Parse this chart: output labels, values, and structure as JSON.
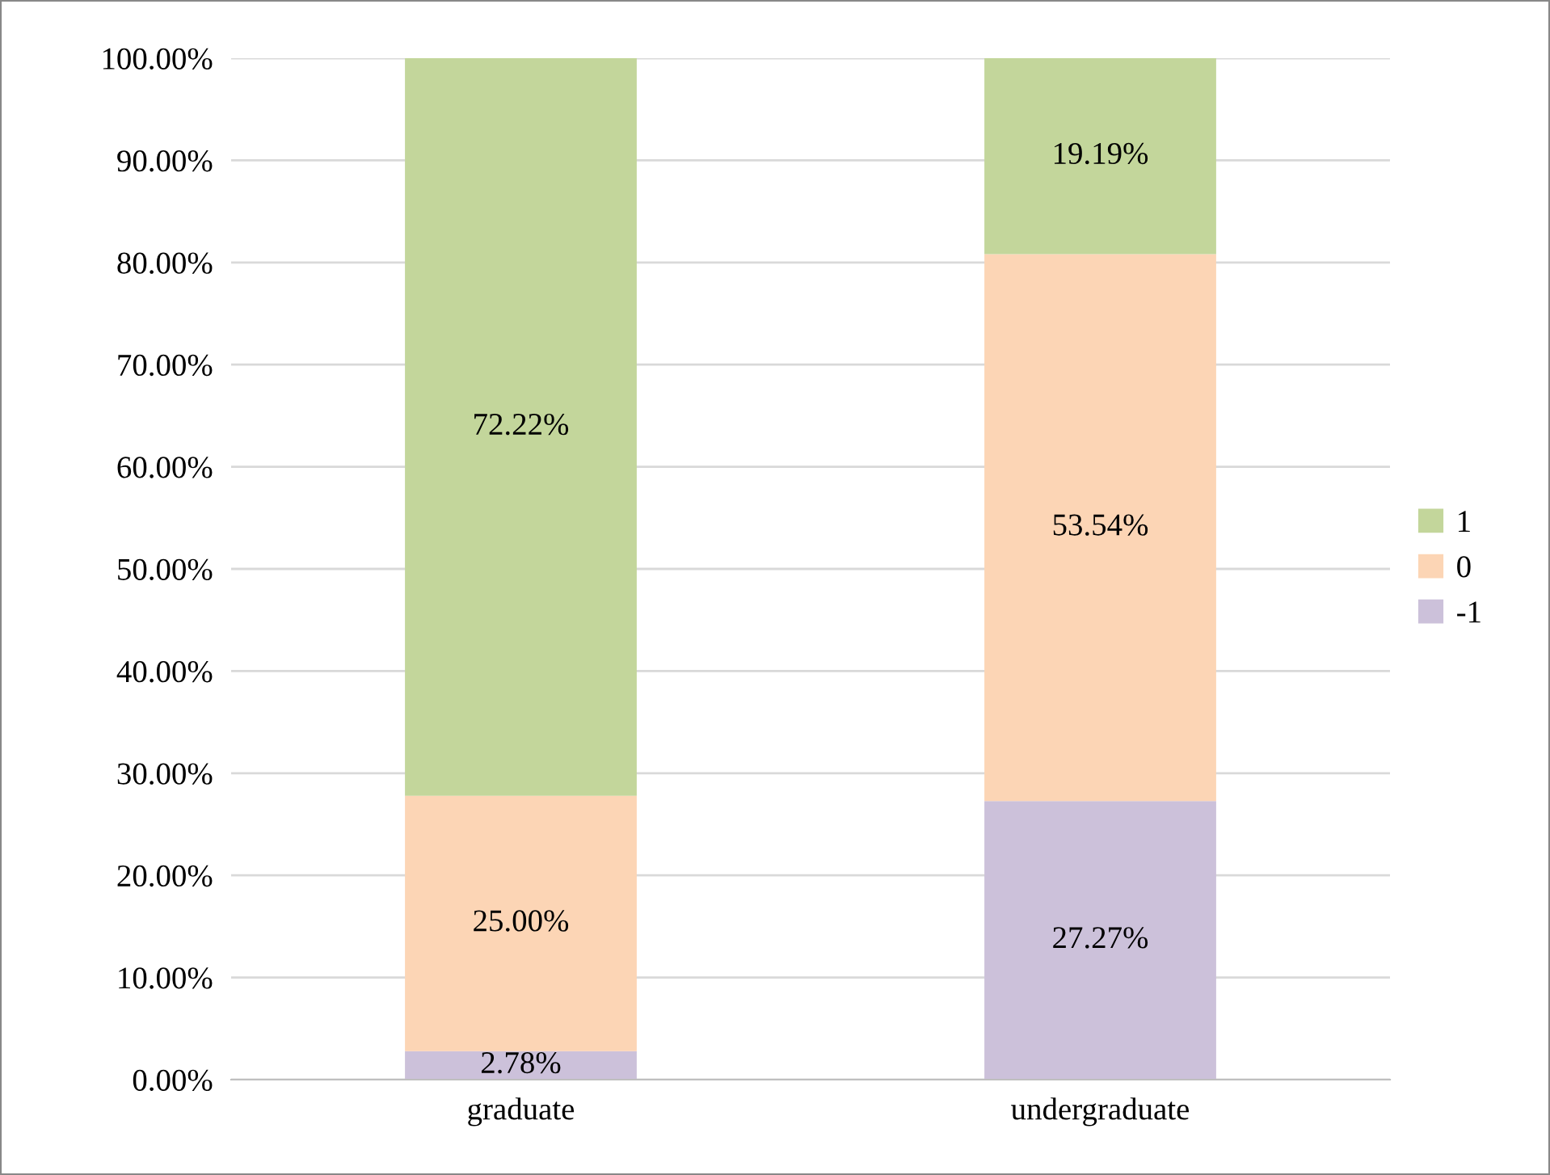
{
  "chart_data": {
    "type": "bar",
    "stacked": true,
    "categories": [
      "graduate",
      "undergraduate"
    ],
    "series": [
      {
        "name": "-1",
        "color": "#ccc1da",
        "values": [
          2.78,
          27.27
        ],
        "value_labels": [
          "2.78%",
          "27.27%"
        ]
      },
      {
        "name": "0",
        "color": "#fcd5b5",
        "values": [
          25.0,
          53.54
        ],
        "value_labels": [
          "25.00%",
          "53.54%"
        ]
      },
      {
        "name": "1",
        "color": "#c3d69b",
        "values": [
          72.22,
          19.19
        ],
        "value_labels": [
          "72.22%",
          "19.19%"
        ]
      }
    ],
    "ylim": [
      0,
      100
    ],
    "yticks": [
      {
        "value": 0,
        "label": "0.00%"
      },
      {
        "value": 10,
        "label": "10.00%"
      },
      {
        "value": 20,
        "label": "20.00%"
      },
      {
        "value": 30,
        "label": "30.00%"
      },
      {
        "value": 40,
        "label": "40.00%"
      },
      {
        "value": 50,
        "label": "50.00%"
      },
      {
        "value": 60,
        "label": "60.00%"
      },
      {
        "value": 70,
        "label": "70.00%"
      },
      {
        "value": 80,
        "label": "80.00%"
      },
      {
        "value": 90,
        "label": "90.00%"
      },
      {
        "value": 100,
        "label": "100.00%"
      }
    ],
    "grid": "y",
    "legend": "right"
  }
}
